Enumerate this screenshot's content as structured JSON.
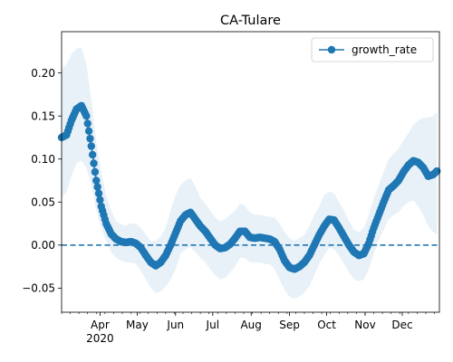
{
  "chart_data": {
    "type": "line",
    "title": "CA-Tulare",
    "xlabel": "",
    "ylabel": "",
    "xlim": [
      "2020-03-01",
      "2020-12-31"
    ],
    "ylim": [
      -0.078,
      0.248
    ],
    "yticks": [
      -0.05,
      0.0,
      0.05,
      0.1,
      0.15,
      0.2
    ],
    "ytick_labels": [
      "−0.05",
      "0.00",
      "0.05",
      "0.10",
      "0.15",
      "0.20"
    ],
    "xticks": [
      {
        "date": "2020-04-01",
        "label": "Apr"
      },
      {
        "date": "2020-05-01",
        "label": "May"
      },
      {
        "date": "2020-06-01",
        "label": "Jun"
      },
      {
        "date": "2020-07-01",
        "label": "Jul"
      },
      {
        "date": "2020-08-01",
        "label": "Aug"
      },
      {
        "date": "2020-09-01",
        "label": "Sep"
      },
      {
        "date": "2020-10-01",
        "label": "Oct"
      },
      {
        "date": "2020-11-01",
        "label": "Nov"
      },
      {
        "date": "2020-12-01",
        "label": "Dec"
      }
    ],
    "year_label": "2020",
    "reference_line": {
      "y": 0.0,
      "style": "dashed"
    },
    "legend": {
      "position": "top-right"
    },
    "series": [
      {
        "name": "growth_rate",
        "color": "#1f77b4",
        "band_color": "#1f77b4",
        "points": [
          {
            "date": "2020-03-01",
            "y": 0.125,
            "lo": 0.055,
            "hi": 0.205
          },
          {
            "date": "2020-03-05",
            "y": 0.128,
            "lo": 0.062,
            "hi": 0.21
          },
          {
            "date": "2020-03-09",
            "y": 0.145,
            "lo": 0.08,
            "hi": 0.222
          },
          {
            "date": "2020-03-13",
            "y": 0.158,
            "lo": 0.095,
            "hi": 0.228
          },
          {
            "date": "2020-03-17",
            "y": 0.162,
            "lo": 0.098,
            "hi": 0.23
          },
          {
            "date": "2020-03-21",
            "y": 0.15,
            "lo": 0.09,
            "hi": 0.21
          },
          {
            "date": "2020-03-25",
            "y": 0.115,
            "lo": 0.07,
            "hi": 0.17
          },
          {
            "date": "2020-03-29",
            "y": 0.075,
            "lo": 0.04,
            "hi": 0.12
          },
          {
            "date": "2020-04-02",
            "y": 0.045,
            "lo": 0.02,
            "hi": 0.085
          },
          {
            "date": "2020-04-06",
            "y": 0.025,
            "lo": 0.005,
            "hi": 0.058
          },
          {
            "date": "2020-04-10",
            "y": 0.013,
            "lo": -0.008,
            "hi": 0.04
          },
          {
            "date": "2020-04-14",
            "y": 0.007,
            "lo": -0.015,
            "hi": 0.028
          },
          {
            "date": "2020-04-18",
            "y": 0.004,
            "lo": -0.018,
            "hi": 0.024
          },
          {
            "date": "2020-04-22",
            "y": 0.003,
            "lo": -0.02,
            "hi": 0.023
          },
          {
            "date": "2020-04-26",
            "y": 0.004,
            "lo": -0.02,
            "hi": 0.025
          },
          {
            "date": "2020-04-30",
            "y": 0.002,
            "lo": -0.022,
            "hi": 0.025
          },
          {
            "date": "2020-05-04",
            "y": -0.003,
            "lo": -0.03,
            "hi": 0.02
          },
          {
            "date": "2020-05-08",
            "y": -0.012,
            "lo": -0.04,
            "hi": 0.012
          },
          {
            "date": "2020-05-12",
            "y": -0.02,
            "lo": -0.05,
            "hi": 0.005
          },
          {
            "date": "2020-05-16",
            "y": -0.024,
            "lo": -0.056,
            "hi": 0.005
          },
          {
            "date": "2020-05-20",
            "y": -0.02,
            "lo": -0.054,
            "hi": 0.01
          },
          {
            "date": "2020-05-24",
            "y": -0.012,
            "lo": -0.048,
            "hi": 0.02
          },
          {
            "date": "2020-05-28",
            "y": 0.0,
            "lo": -0.04,
            "hi": 0.04
          },
          {
            "date": "2020-06-01",
            "y": 0.014,
            "lo": -0.028,
            "hi": 0.058
          },
          {
            "date": "2020-06-05",
            "y": 0.028,
            "lo": -0.01,
            "hi": 0.07
          },
          {
            "date": "2020-06-09",
            "y": 0.035,
            "lo": -0.005,
            "hi": 0.075
          },
          {
            "date": "2020-06-13",
            "y": 0.038,
            "lo": -0.002,
            "hi": 0.078
          },
          {
            "date": "2020-06-17",
            "y": 0.03,
            "lo": -0.008,
            "hi": 0.068
          },
          {
            "date": "2020-06-21",
            "y": 0.022,
            "lo": -0.015,
            "hi": 0.055
          },
          {
            "date": "2020-06-25",
            "y": 0.016,
            "lo": -0.02,
            "hi": 0.048
          },
          {
            "date": "2020-06-29",
            "y": 0.008,
            "lo": -0.028,
            "hi": 0.04
          },
          {
            "date": "2020-07-03",
            "y": 0.0,
            "lo": -0.035,
            "hi": 0.032
          },
          {
            "date": "2020-07-07",
            "y": -0.004,
            "lo": -0.04,
            "hi": 0.028
          },
          {
            "date": "2020-07-11",
            "y": -0.003,
            "lo": -0.038,
            "hi": 0.03
          },
          {
            "date": "2020-07-15",
            "y": 0.001,
            "lo": -0.032,
            "hi": 0.035
          },
          {
            "date": "2020-07-19",
            "y": 0.008,
            "lo": -0.025,
            "hi": 0.04
          },
          {
            "date": "2020-07-23",
            "y": 0.016,
            "lo": -0.015,
            "hi": 0.048
          },
          {
            "date": "2020-07-27",
            "y": 0.016,
            "lo": -0.015,
            "hi": 0.046
          },
          {
            "date": "2020-07-31",
            "y": 0.009,
            "lo": -0.02,
            "hi": 0.038
          },
          {
            "date": "2020-08-04",
            "y": 0.008,
            "lo": -0.02,
            "hi": 0.035
          },
          {
            "date": "2020-08-08",
            "y": 0.009,
            "lo": -0.02,
            "hi": 0.035
          },
          {
            "date": "2020-08-12",
            "y": 0.008,
            "lo": -0.022,
            "hi": 0.034
          },
          {
            "date": "2020-08-16",
            "y": 0.007,
            "lo": -0.022,
            "hi": 0.033
          },
          {
            "date": "2020-08-20",
            "y": 0.004,
            "lo": -0.028,
            "hi": 0.032
          },
          {
            "date": "2020-08-24",
            "y": -0.005,
            "lo": -0.04,
            "hi": 0.025
          },
          {
            "date": "2020-08-28",
            "y": -0.018,
            "lo": -0.052,
            "hi": 0.015
          },
          {
            "date": "2020-09-01",
            "y": -0.026,
            "lo": -0.06,
            "hi": 0.008
          },
          {
            "date": "2020-09-05",
            "y": -0.028,
            "lo": -0.062,
            "hi": 0.005
          },
          {
            "date": "2020-09-09",
            "y": -0.025,
            "lo": -0.06,
            "hi": 0.008
          },
          {
            "date": "2020-09-13",
            "y": -0.02,
            "lo": -0.055,
            "hi": 0.012
          },
          {
            "date": "2020-09-17",
            "y": -0.012,
            "lo": -0.048,
            "hi": 0.022
          },
          {
            "date": "2020-09-21",
            "y": 0.0,
            "lo": -0.035,
            "hi": 0.035
          },
          {
            "date": "2020-09-25",
            "y": 0.012,
            "lo": -0.022,
            "hi": 0.045
          },
          {
            "date": "2020-09-29",
            "y": 0.022,
            "lo": -0.012,
            "hi": 0.058
          },
          {
            "date": "2020-10-03",
            "y": 0.03,
            "lo": -0.003,
            "hi": 0.062
          },
          {
            "date": "2020-10-07",
            "y": 0.029,
            "lo": -0.005,
            "hi": 0.06
          },
          {
            "date": "2020-10-11",
            "y": 0.02,
            "lo": -0.012,
            "hi": 0.05
          },
          {
            "date": "2020-10-15",
            "y": 0.01,
            "lo": -0.022,
            "hi": 0.04
          },
          {
            "date": "2020-10-19",
            "y": 0.0,
            "lo": -0.032,
            "hi": 0.028
          },
          {
            "date": "2020-10-23",
            "y": -0.008,
            "lo": -0.04,
            "hi": 0.018
          },
          {
            "date": "2020-10-27",
            "y": -0.012,
            "lo": -0.042,
            "hi": 0.015
          },
          {
            "date": "2020-10-31",
            "y": -0.01,
            "lo": -0.04,
            "hi": 0.02
          },
          {
            "date": "2020-11-04",
            "y": 0.002,
            "lo": -0.028,
            "hi": 0.035
          },
          {
            "date": "2020-11-08",
            "y": 0.02,
            "lo": -0.01,
            "hi": 0.055
          },
          {
            "date": "2020-11-12",
            "y": 0.035,
            "lo": 0.005,
            "hi": 0.07
          },
          {
            "date": "2020-11-16",
            "y": 0.05,
            "lo": 0.018,
            "hi": 0.085
          },
          {
            "date": "2020-11-20",
            "y": 0.064,
            "lo": 0.03,
            "hi": 0.1
          },
          {
            "date": "2020-11-24",
            "y": 0.069,
            "lo": 0.035,
            "hi": 0.106
          },
          {
            "date": "2020-11-28",
            "y": 0.075,
            "lo": 0.038,
            "hi": 0.112
          },
          {
            "date": "2020-12-02",
            "y": 0.085,
            "lo": 0.045,
            "hi": 0.122
          },
          {
            "date": "2020-12-06",
            "y": 0.093,
            "lo": 0.05,
            "hi": 0.13
          },
          {
            "date": "2020-12-10",
            "y": 0.098,
            "lo": 0.052,
            "hi": 0.14
          },
          {
            "date": "2020-12-14",
            "y": 0.096,
            "lo": 0.045,
            "hi": 0.145
          },
          {
            "date": "2020-12-18",
            "y": 0.09,
            "lo": 0.035,
            "hi": 0.148
          },
          {
            "date": "2020-12-22",
            "y": 0.08,
            "lo": 0.022,
            "hi": 0.148
          },
          {
            "date": "2020-12-26",
            "y": 0.082,
            "lo": 0.015,
            "hi": 0.15
          },
          {
            "date": "2020-12-29",
            "y": 0.086,
            "lo": 0.012,
            "hi": 0.155
          }
        ]
      }
    ]
  }
}
